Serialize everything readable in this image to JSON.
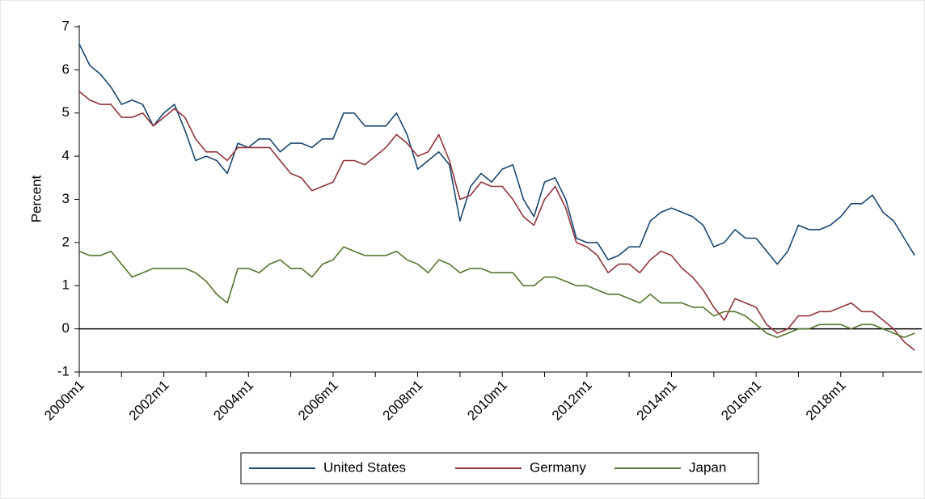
{
  "chart_data": {
    "type": "line",
    "ylabel": "Percent",
    "x": [
      "2000m1",
      "2000m4",
      "2000m7",
      "2000m10",
      "2001m1",
      "2001m4",
      "2001m7",
      "2001m10",
      "2002m1",
      "2002m4",
      "2002m7",
      "2002m10",
      "2003m1",
      "2003m4",
      "2003m7",
      "2003m10",
      "2004m1",
      "2004m4",
      "2004m7",
      "2004m10",
      "2005m1",
      "2005m4",
      "2005m7",
      "2005m10",
      "2006m1",
      "2006m4",
      "2006m7",
      "2006m10",
      "2007m1",
      "2007m4",
      "2007m7",
      "2007m10",
      "2008m1",
      "2008m4",
      "2008m7",
      "2008m10",
      "2009m1",
      "2009m4",
      "2009m7",
      "2009m10",
      "2010m1",
      "2010m4",
      "2010m7",
      "2010m10",
      "2011m1",
      "2011m4",
      "2011m7",
      "2011m10",
      "2012m1",
      "2012m4",
      "2012m7",
      "2012m10",
      "2013m1",
      "2013m4",
      "2013m7",
      "2013m10",
      "2014m1",
      "2014m4",
      "2014m7",
      "2014m10",
      "2015m1",
      "2015m4",
      "2015m7",
      "2015m10",
      "2016m1",
      "2016m4",
      "2016m7",
      "2016m10",
      "2017m1",
      "2017m4",
      "2017m7",
      "2017m10",
      "2018m1",
      "2018m4",
      "2018m7",
      "2018m10",
      "2019m1",
      "2019m4",
      "2019m7",
      "2019m10"
    ],
    "series": [
      {
        "name": "United States",
        "color": "#1a476f",
        "values": [
          6.6,
          6.1,
          5.9,
          5.6,
          5.2,
          5.3,
          5.2,
          4.7,
          5.0,
          5.2,
          4.6,
          3.9,
          4.0,
          3.9,
          3.6,
          4.3,
          4.2,
          4.4,
          4.4,
          4.1,
          4.3,
          4.3,
          4.2,
          4.4,
          4.4,
          5.0,
          5.0,
          4.7,
          4.7,
          4.7,
          5.0,
          4.5,
          3.7,
          3.9,
          4.1,
          3.8,
          2.5,
          3.3,
          3.6,
          3.4,
          3.7,
          3.8,
          3.0,
          2.6,
          3.4,
          3.5,
          3.0,
          2.1,
          2.0,
          2.0,
          1.6,
          1.7,
          1.9,
          1.9,
          2.5,
          2.7,
          2.8,
          2.7,
          2.6,
          2.4,
          1.9,
          2.0,
          2.3,
          2.1,
          2.1,
          1.8,
          1.5,
          1.8,
          2.4,
          2.3,
          2.3,
          2.4,
          2.6,
          2.9,
          2.9,
          3.1,
          2.7,
          2.5,
          2.1,
          1.7
        ]
      },
      {
        "name": "Germany",
        "color": "#90353b",
        "values": [
          5.5,
          5.3,
          5.2,
          5.2,
          4.9,
          4.9,
          5.0,
          4.7,
          4.9,
          5.1,
          4.9,
          4.4,
          4.1,
          4.1,
          3.9,
          4.2,
          4.2,
          4.2,
          4.2,
          3.9,
          3.6,
          3.5,
          3.2,
          3.3,
          3.4,
          3.9,
          3.9,
          3.8,
          4.0,
          4.2,
          4.5,
          4.3,
          4.0,
          4.1,
          4.5,
          3.9,
          3.0,
          3.1,
          3.4,
          3.3,
          3.3,
          3.0,
          2.6,
          2.4,
          3.0,
          3.3,
          2.8,
          2.0,
          1.9,
          1.7,
          1.3,
          1.5,
          1.5,
          1.3,
          1.6,
          1.8,
          1.7,
          1.4,
          1.2,
          0.9,
          0.5,
          0.2,
          0.7,
          0.6,
          0.5,
          0.1,
          -0.1,
          0.0,
          0.3,
          0.3,
          0.4,
          0.4,
          0.5,
          0.6,
          0.4,
          0.4,
          0.2,
          0.0,
          -0.3,
          -0.5
        ]
      },
      {
        "name": "Japan",
        "color": "#55752f",
        "values": [
          1.8,
          1.7,
          1.7,
          1.8,
          1.5,
          1.2,
          1.3,
          1.4,
          1.4,
          1.4,
          1.4,
          1.3,
          1.1,
          0.8,
          0.6,
          1.4,
          1.4,
          1.3,
          1.5,
          1.6,
          1.4,
          1.4,
          1.2,
          1.5,
          1.6,
          1.9,
          1.8,
          1.7,
          1.7,
          1.7,
          1.8,
          1.6,
          1.5,
          1.3,
          1.6,
          1.5,
          1.3,
          1.4,
          1.4,
          1.3,
          1.3,
          1.3,
          1.0,
          1.0,
          1.2,
          1.2,
          1.1,
          1.0,
          1.0,
          0.9,
          0.8,
          0.8,
          0.7,
          0.6,
          0.8,
          0.6,
          0.6,
          0.6,
          0.5,
          0.5,
          0.3,
          0.4,
          0.4,
          0.3,
          0.1,
          -0.1,
          -0.2,
          -0.1,
          0.0,
          0.0,
          0.1,
          0.1,
          0.1,
          0.0,
          0.1,
          0.1,
          0.0,
          -0.1,
          -0.2,
          -0.1
        ]
      }
    ],
    "xticks": [
      "2000m1",
      "2002m1",
      "2004m1",
      "2006m1",
      "2008m1",
      "2010m1",
      "2012m1",
      "2014m1",
      "2016m1",
      "2018m1"
    ],
    "ylim": [
      -1,
      7
    ],
    "yticks": [
      -1,
      0,
      1,
      2,
      3,
      4,
      5,
      6,
      7
    ],
    "grid": false,
    "zero_line": true,
    "legend": "bottom"
  }
}
